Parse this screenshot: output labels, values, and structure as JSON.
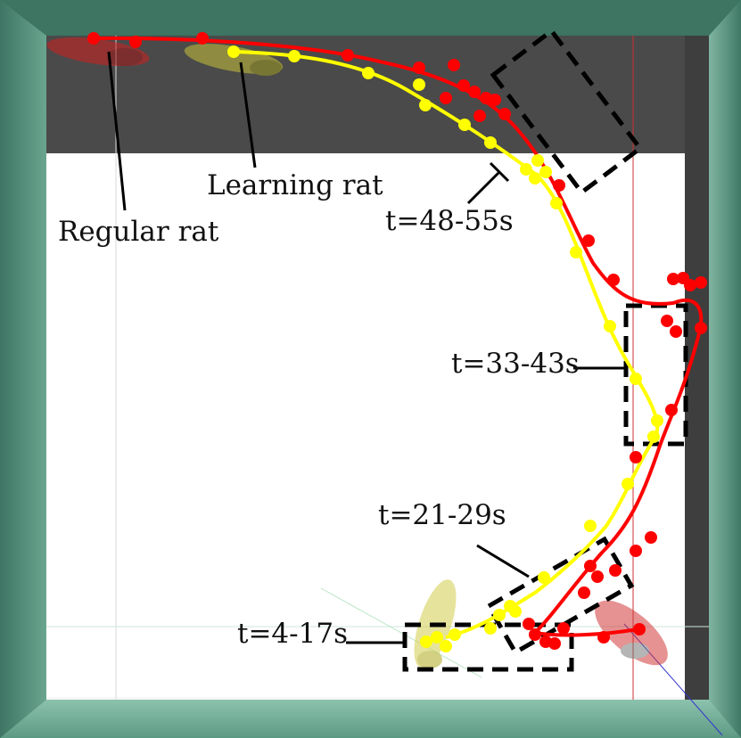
{
  "labels": {
    "regular_rat": "Regular rat",
    "learning_rat": "Learning rat",
    "t_48_55": "t=48-55s",
    "t_33_43": "t=33-43s",
    "t_21_29": "t=21-29s",
    "t_4_17": "t=4-17s"
  },
  "colors": {
    "regular_rat_trajectory": "#ff0000",
    "learning_rat_trajectory": "#ffff00",
    "arena_floor": "#ffffff",
    "arena_back_wall": "#4a4a4a",
    "outer_walls": "#4f8a76"
  }
}
